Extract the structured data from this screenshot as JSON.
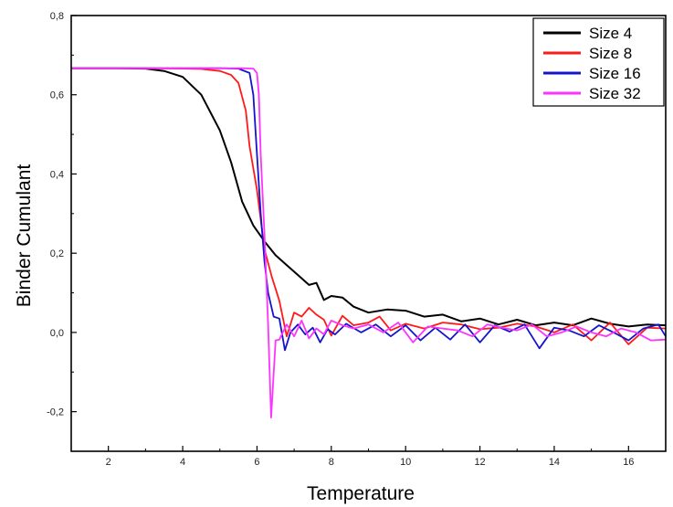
{
  "chart_data": {
    "type": "line",
    "title": "",
    "xlabel": "Temperature",
    "ylabel": "Binder Cumulant",
    "xlim": [
      1,
      17
    ],
    "ylim": [
      -0.3,
      0.8
    ],
    "xticks": [
      2,
      4,
      6,
      8,
      10,
      12,
      14,
      16
    ],
    "yticks": [
      -0.2,
      0.0,
      0.2,
      0.4,
      0.6,
      0.8
    ],
    "xtick_labels": [
      "2",
      "4",
      "6",
      "8",
      "10",
      "12",
      "14",
      "16"
    ],
    "ytick_labels": [
      "-0,2",
      "0,0",
      "0,2",
      "0,4",
      "0,6",
      "0,8"
    ],
    "legend_position": "top-right",
    "series": [
      {
        "name": "Size 4",
        "color": "#000000",
        "x": [
          1.0,
          2.0,
          3.0,
          3.5,
          4.0,
          4.5,
          5.0,
          5.3,
          5.6,
          5.9,
          6.2,
          6.5,
          6.8,
          7.1,
          7.4,
          7.6,
          7.8,
          8.0,
          8.3,
          8.6,
          9.0,
          9.5,
          10.0,
          10.5,
          11.0,
          11.5,
          12.0,
          12.5,
          13.0,
          13.5,
          14.0,
          14.5,
          15.0,
          15.5,
          16.0,
          16.5,
          17.0
        ],
        "y": [
          0.667,
          0.667,
          0.666,
          0.66,
          0.645,
          0.6,
          0.51,
          0.43,
          0.33,
          0.27,
          0.23,
          0.195,
          0.17,
          0.145,
          0.12,
          0.125,
          0.082,
          0.092,
          0.088,
          0.065,
          0.05,
          0.058,
          0.055,
          0.04,
          0.045,
          0.028,
          0.035,
          0.02,
          0.032,
          0.018,
          0.025,
          0.018,
          0.035,
          0.022,
          0.015,
          0.02,
          0.018
        ]
      },
      {
        "name": "Size 8",
        "color": "#ff1a1a",
        "x": [
          1.0,
          3.0,
          4.0,
          4.5,
          5.0,
          5.3,
          5.5,
          5.7,
          5.8,
          6.0,
          6.2,
          6.4,
          6.6,
          6.8,
          7.0,
          7.2,
          7.4,
          7.6,
          7.8,
          8.0,
          8.3,
          8.6,
          9.0,
          9.3,
          9.6,
          10.0,
          10.5,
          11.0,
          11.5,
          12.0,
          12.5,
          13.0,
          13.5,
          14.0,
          14.5,
          15.0,
          15.5,
          16.0,
          16.5,
          17.0
        ],
        "y": [
          0.667,
          0.667,
          0.666,
          0.665,
          0.66,
          0.65,
          0.63,
          0.56,
          0.47,
          0.36,
          0.21,
          0.14,
          0.08,
          -0.01,
          0.05,
          0.04,
          0.062,
          0.045,
          0.032,
          -0.008,
          0.042,
          0.018,
          0.025,
          0.04,
          0.005,
          0.022,
          0.01,
          0.025,
          0.02,
          0.008,
          0.012,
          0.022,
          0.015,
          0.0,
          0.02,
          -0.02,
          0.025,
          -0.03,
          0.012,
          0.01
        ]
      },
      {
        "name": "Size 16",
        "color": "#1414cc",
        "x": [
          1.0,
          3.0,
          4.0,
          5.0,
          5.5,
          5.8,
          5.9,
          6.0,
          6.1,
          6.2,
          6.3,
          6.45,
          6.6,
          6.75,
          6.9,
          7.1,
          7.3,
          7.5,
          7.7,
          7.9,
          8.1,
          8.4,
          8.8,
          9.2,
          9.6,
          10.0,
          10.4,
          10.8,
          11.2,
          11.6,
          12.0,
          12.4,
          12.8,
          13.2,
          13.6,
          14.0,
          14.4,
          14.8,
          15.2,
          15.6,
          16.0,
          16.4,
          16.8,
          17.0
        ],
        "y": [
          0.667,
          0.667,
          0.667,
          0.667,
          0.666,
          0.655,
          0.6,
          0.45,
          0.3,
          0.18,
          0.1,
          0.04,
          0.035,
          -0.045,
          0.0,
          0.02,
          -0.005,
          0.012,
          -0.025,
          0.008,
          -0.005,
          0.022,
          0.0,
          0.02,
          -0.01,
          0.018,
          -0.02,
          0.012,
          -0.018,
          0.02,
          -0.025,
          0.018,
          0.002,
          0.02,
          -0.04,
          0.012,
          0.005,
          -0.01,
          0.018,
          0.0,
          -0.02,
          0.01,
          0.02,
          -0.01
        ]
      },
      {
        "name": "Size 32",
        "color": "#ff33ff",
        "x": [
          1.0,
          3.0,
          4.0,
          5.0,
          5.6,
          5.9,
          6.0,
          6.05,
          6.1,
          6.2,
          6.3,
          6.38,
          6.5,
          6.6,
          6.8,
          7.0,
          7.2,
          7.4,
          7.6,
          7.8,
          8.0,
          8.3,
          8.6,
          9.0,
          9.4,
          9.8,
          10.2,
          10.6,
          11.0,
          11.4,
          11.8,
          12.2,
          12.6,
          13.0,
          13.4,
          13.8,
          14.2,
          14.6,
          15.0,
          15.4,
          15.8,
          16.2,
          16.6,
          17.0
        ],
        "y": [
          0.667,
          0.667,
          0.667,
          0.667,
          0.667,
          0.666,
          0.655,
          0.6,
          0.45,
          0.25,
          0.02,
          -0.215,
          -0.02,
          -0.018,
          0.02,
          -0.01,
          0.03,
          -0.015,
          0.01,
          -0.005,
          0.03,
          0.018,
          0.01,
          0.02,
          0.0,
          0.025,
          -0.025,
          0.015,
          0.01,
          0.005,
          -0.01,
          0.02,
          0.012,
          0.005,
          0.02,
          -0.01,
          0.0,
          0.015,
          0.0,
          -0.01,
          0.01,
          0.0,
          -0.02,
          -0.018
        ]
      }
    ]
  }
}
